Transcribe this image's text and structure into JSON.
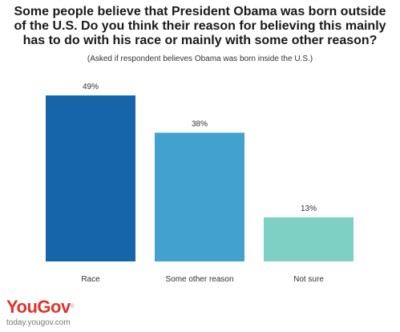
{
  "chart_data": {
    "type": "bar",
    "title": "Some people believe that President Obama was born outside of the U.S. Do you think their reason for believing this mainly has to do with his race or mainly with some other reason?",
    "subtitle": "(Asked if respondent believes Obama was born inside the U.S.)",
    "categories": [
      "Race",
      "Some other reason",
      "Not sure"
    ],
    "values": [
      49,
      38,
      13
    ],
    "value_labels": [
      "49%",
      "38%",
      "13%"
    ],
    "colors": [
      "#1565a8",
      "#43a1cf",
      "#7ecfc4"
    ],
    "ylim": [
      0,
      49
    ],
    "grid": false,
    "legend": "none"
  },
  "brand": {
    "logo_text": "YouGov",
    "logo_mark": "®",
    "site": "today.yougov.com",
    "color": "#e3322b"
  }
}
